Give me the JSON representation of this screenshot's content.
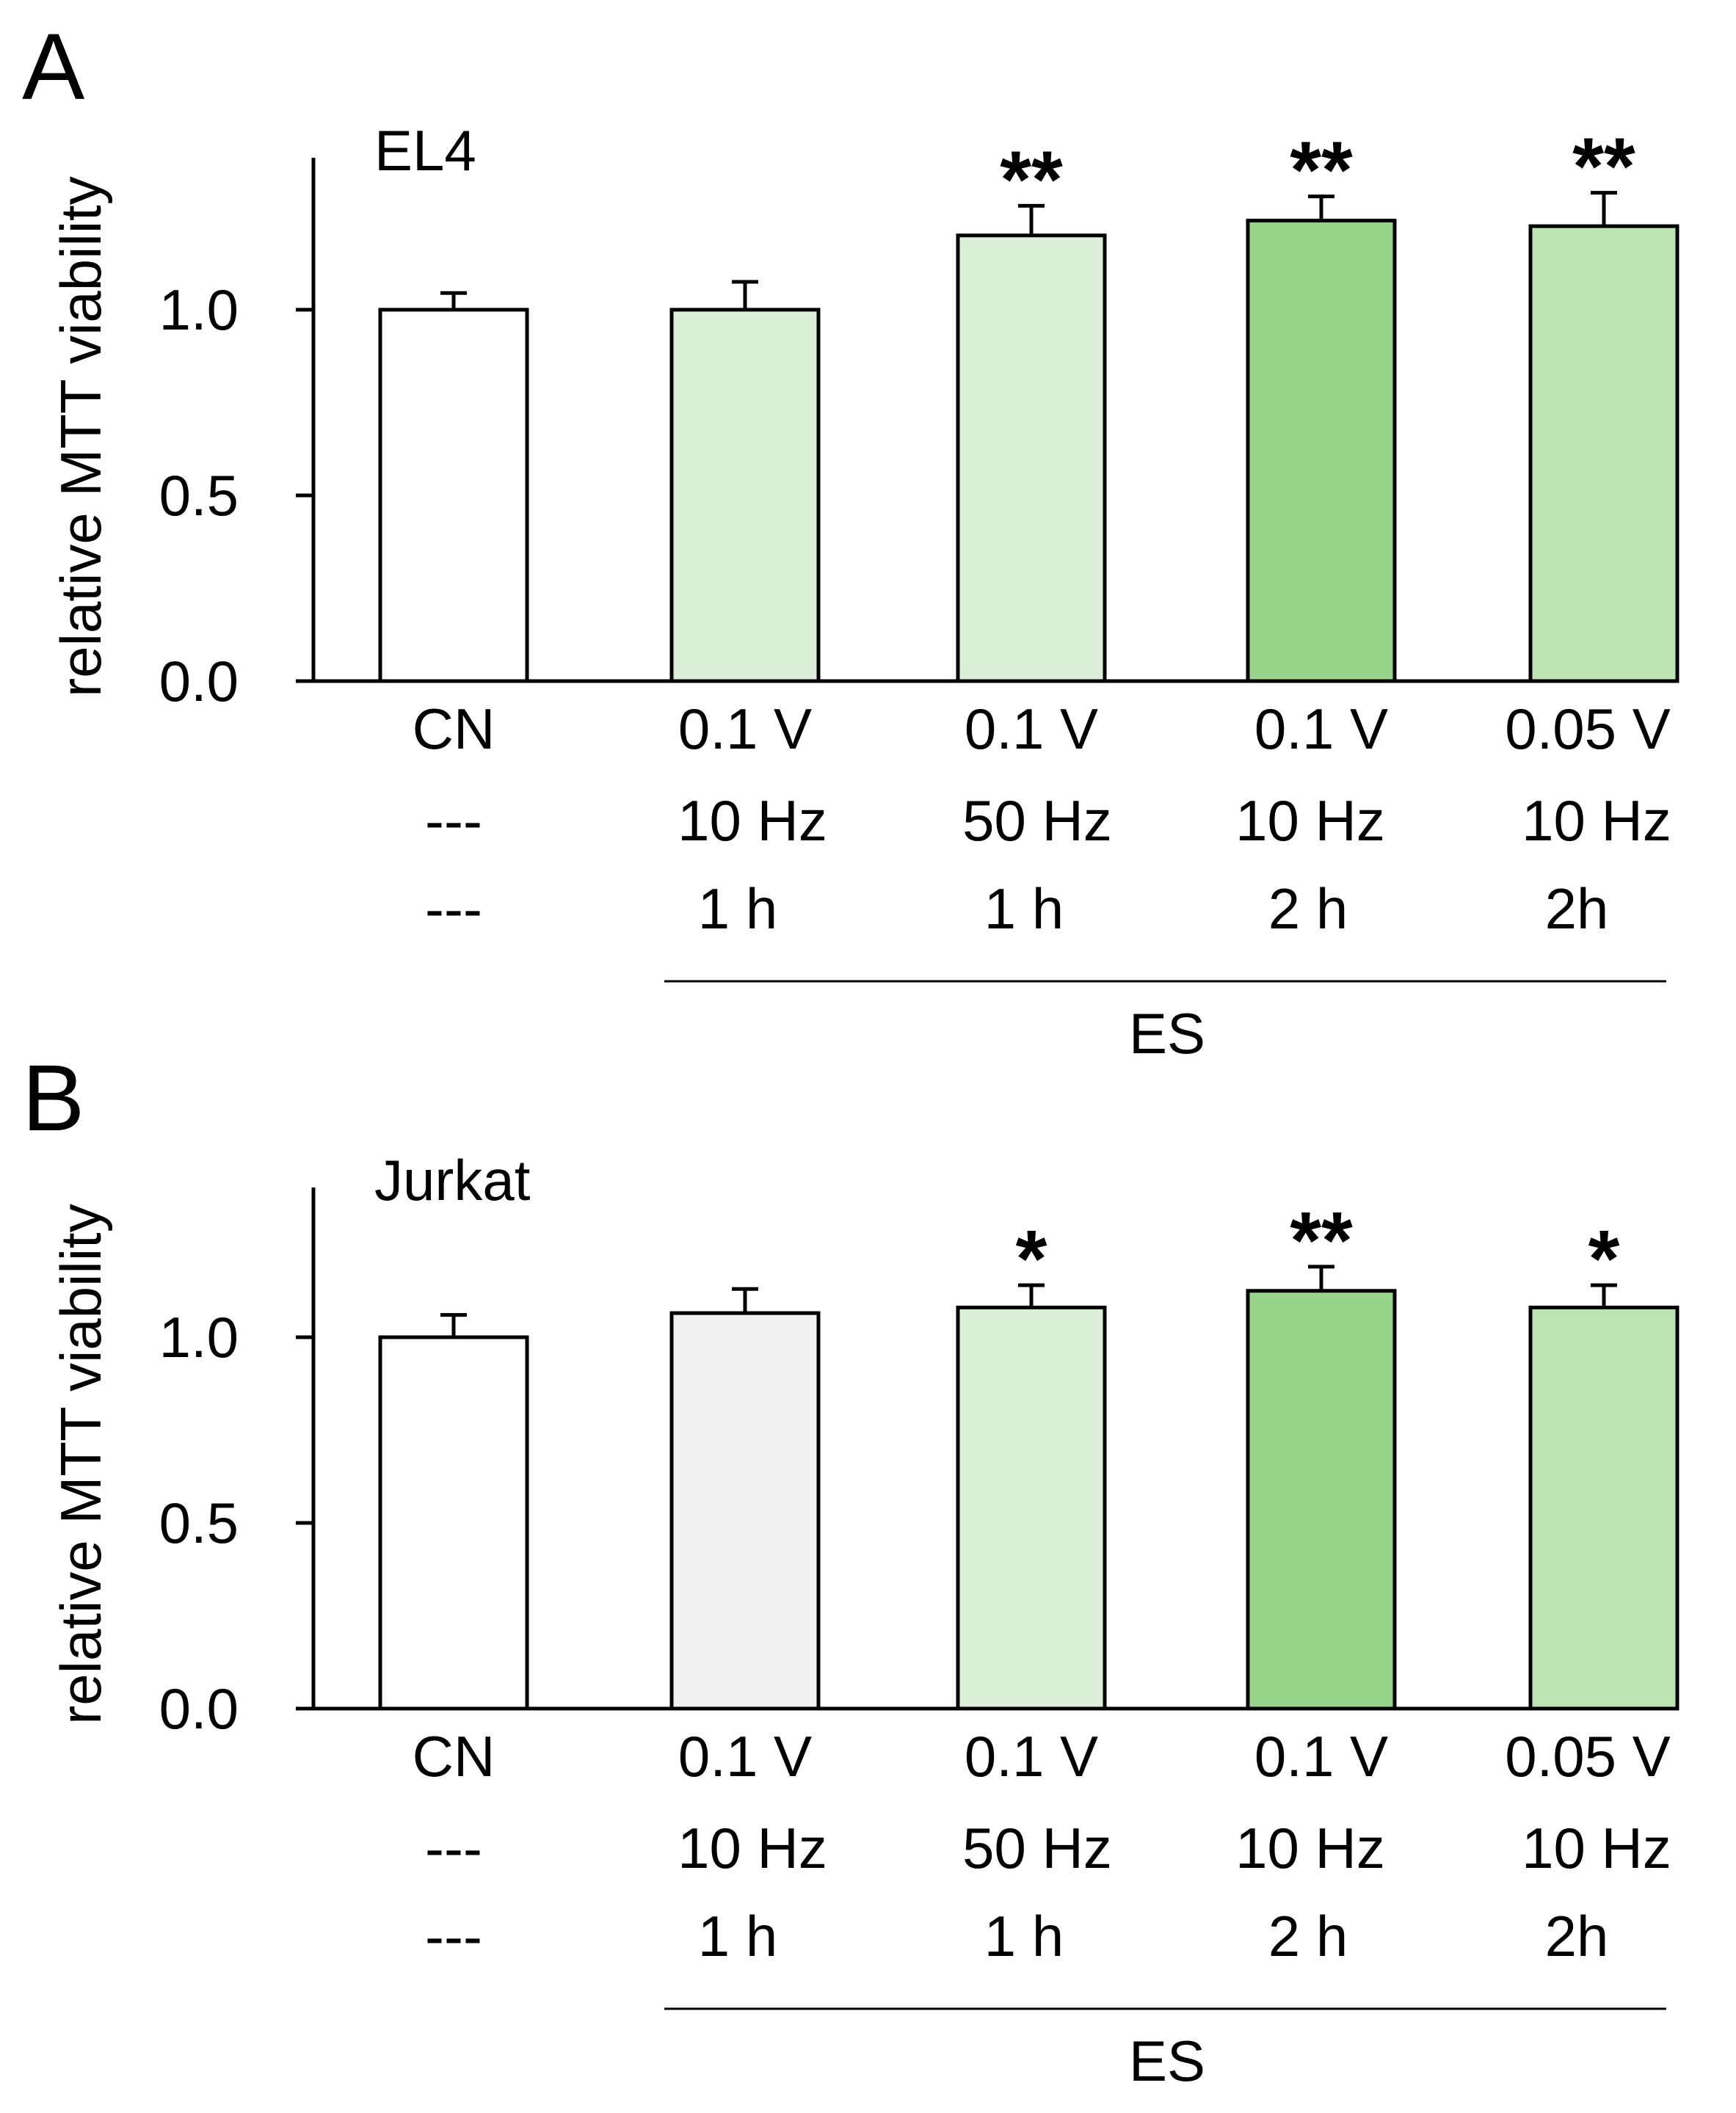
{
  "chart_data": [
    {
      "type": "bar",
      "panel": "A",
      "title": "EL4",
      "ylabel": "relative MTT viability",
      "ylim": [
        0,
        1.4
      ],
      "yticks": [
        "0.0",
        "0.5",
        "1.0"
      ],
      "categories": [
        "CN",
        "0.1 V 10 Hz 1 h",
        "0.1 V 50 Hz 1 h",
        "0.1 V 10 Hz 2 h",
        "0.05 V 10 Hz 2h"
      ],
      "category_lines": [
        [
          "CN",
          "---",
          "---"
        ],
        [
          "0.1 V",
          "10 Hz",
          "1 h"
        ],
        [
          "0.1 V",
          "50 Hz",
          "1 h"
        ],
        [
          "0.1 V",
          "10 Hz",
          "2 h"
        ],
        [
          "0.05 V",
          "10 Hz",
          "2h"
        ]
      ],
      "values": [
        1.0,
        1.0,
        1.2,
        1.24,
        1.225
      ],
      "errors": [
        0.045,
        0.075,
        0.08,
        0.065,
        0.09
      ],
      "significance": [
        "",
        "",
        "**",
        "**",
        "**"
      ],
      "colors": [
        "#ffffff",
        "#dcefd8",
        "#dcefd8",
        "#98d48c",
        "#bde2b3"
      ],
      "group_label": "ES"
    },
    {
      "type": "bar",
      "panel": "B",
      "title": "Jurkat",
      "ylabel": "relative MTT viability",
      "ylim": [
        0,
        1.4
      ],
      "yticks": [
        "0.0",
        "0.5",
        "1.0"
      ],
      "categories": [
        "CN",
        "0.1 V 10 Hz 1 h",
        "0.1 V 50 Hz 1 h",
        "0.1 V 10 Hz 2 h",
        "0.05 V 10 Hz 2h"
      ],
      "category_lines": [
        [
          "CN",
          "---",
          "---"
        ],
        [
          "0.1 V",
          "10 Hz",
          "1 h"
        ],
        [
          "0.1 V",
          "50 Hz",
          "1 h"
        ],
        [
          "0.1 V",
          "10 Hz",
          "2 h"
        ],
        [
          "0.05 V",
          "10 Hz",
          "2h"
        ]
      ],
      "values": [
        1.0,
        1.065,
        1.08,
        1.125,
        1.08
      ],
      "errors": [
        0.06,
        0.065,
        0.06,
        0.065,
        0.06
      ],
      "significance": [
        "",
        "",
        "*",
        "**",
        "*"
      ],
      "colors": [
        "#ffffff",
        "#f0f0f0",
        "#dcefd8",
        "#98d48c",
        "#bde2b3"
      ],
      "group_label": "ES"
    }
  ]
}
